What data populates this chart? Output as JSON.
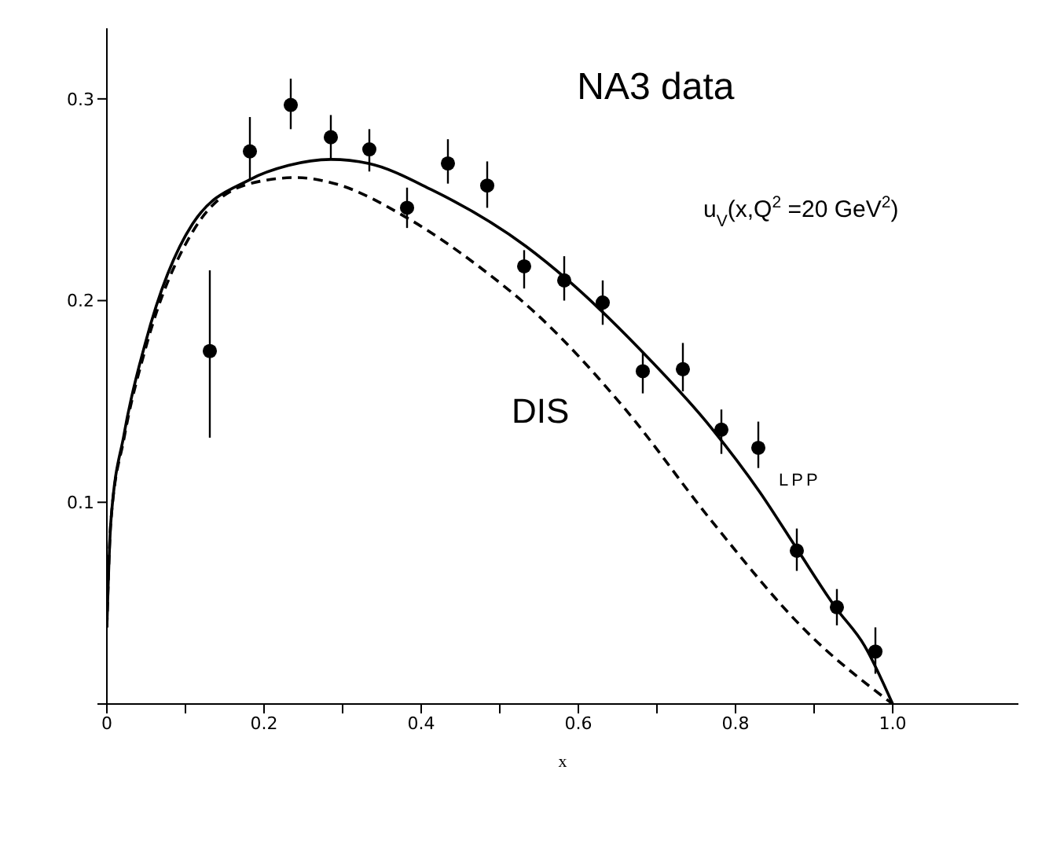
{
  "chart_data": {
    "type": "scatter",
    "xlabel": "x",
    "annotations": [
      "NA3 data",
      "u$_{V}$(x,Q$^{2}$ =20 GeV$^{2}$)"
    ],
    "x": [
      0.131,
      0.182,
      0.234,
      0.285,
      0.334,
      0.382,
      0.434,
      0.484,
      0.531,
      0.582,
      0.631,
      0.682,
      0.733,
      0.782,
      0.829,
      0.878,
      0.929,
      0.978
    ],
    "series": [
      {
        "color": "#000000",
        "marker": "circle",
        "values": [
          0.175,
          0.274,
          0.297,
          0.281,
          0.275,
          0.246,
          0.268,
          0.257,
          0.217,
          0.21,
          0.199,
          0.165,
          0.166,
          0.136,
          0.127,
          0.076,
          0.048,
          0.026
        ],
        "errors": [
          [
            0.132,
            0.215
          ],
          [
            0.26,
            0.291
          ],
          [
            0.285,
            0.31
          ],
          [
            0.27,
            0.292
          ],
          [
            0.264,
            0.285
          ],
          [
            0.236,
            0.256
          ],
          [
            0.258,
            0.28
          ],
          [
            0.246,
            0.269
          ],
          [
            0.206,
            0.225
          ],
          [
            0.2,
            0.222
          ],
          [
            0.188,
            0.21
          ],
          [
            0.154,
            0.174
          ],
          [
            0.155,
            0.179
          ],
          [
            0.124,
            0.146
          ],
          [
            0.117,
            0.14
          ],
          [
            0.066,
            0.087
          ],
          [
            0.039,
            0.057
          ],
          [
            0.015,
            0.038
          ]
        ]
      },
      {
        "type": "line",
        "name": "LPP",
        "color": "#000000",
        "line_style": "solid",
        "marker": "none",
        "x": [
          0,
          0.005,
          0.022,
          0.049,
          0.109,
          0.182,
          0.231,
          0.285,
          0.333,
          0.413,
          0.533,
          0.587,
          0.678,
          0.769,
          0.831,
          0.878,
          0.927,
          0.964,
          1.0
        ],
        "values": [
          0.038,
          0.09,
          0.134,
          0.179,
          0.238,
          0.26,
          0.267,
          0.27,
          0.268,
          0.255,
          0.227,
          0.21,
          0.176,
          0.137,
          0.105,
          0.077,
          0.048,
          0.029,
          0
        ]
      },
      {
        "type": "line",
        "name": "DIS",
        "color": "#000000",
        "line_style": "dashed",
        "marker": "none",
        "x": [
          0,
          0.005,
          0.022,
          0.049,
          0.109,
          0.182,
          0.242,
          0.29,
          0.382,
          0.473,
          0.545,
          0.66,
          0.769,
          0.89,
          1.0
        ],
        "values": [
          0.038,
          0.09,
          0.132,
          0.176,
          0.234,
          0.258,
          0.261,
          0.258,
          0.241,
          0.217,
          0.194,
          0.146,
          0.091,
          0.036,
          0
        ]
      }
    ],
    "xlim": [
      0,
      1.16
    ],
    "ylim": [
      0,
      0.335
    ],
    "xticks": [
      0,
      {
        "value": 0.1,
        "label": null
      },
      0.2,
      {
        "value": 0.3,
        "label": null
      },
      0.4,
      {
        "value": 0.5,
        "label": null
      },
      0.6,
      {
        "value": 0.7,
        "label": null
      },
      0.8,
      {
        "value": 0.9,
        "label": null
      },
      {
        "value": 1,
        "label": "1.0"
      }
    ],
    "yticks": [
      {
        "value": 0,
        "label": null
      },
      0.1,
      0.2,
      0.3
    ],
    "grid": false
  }
}
